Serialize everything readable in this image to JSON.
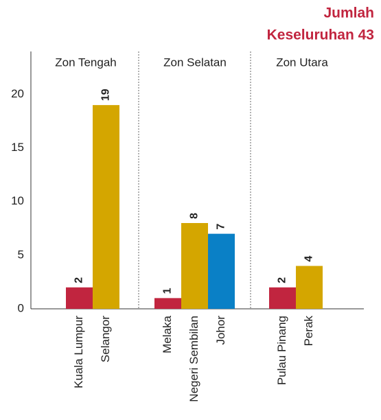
{
  "chart_data": {
    "type": "bar",
    "title_lines": [
      "Jumlah",
      "Keseluruhan 43"
    ],
    "groups": [
      {
        "name": "Zon Tengah",
        "categories": [
          "Kuala Lumpur",
          "Selangor"
        ],
        "values": [
          2,
          19
        ],
        "colors": [
          "#c1253f",
          "#d4a600"
        ]
      },
      {
        "name": "Zon Selatan",
        "categories": [
          "Melaka",
          "Negeri Sembilan",
          "Johor"
        ],
        "values": [
          1,
          8,
          7
        ],
        "colors": [
          "#c1253f",
          "#d4a600",
          "#0a80c6"
        ]
      },
      {
        "name": "Zon Utara",
        "categories": [
          "Pulau Pinang",
          "Perak"
        ],
        "values": [
          2,
          4
        ],
        "colors": [
          "#c1253f",
          "#d4a600"
        ]
      }
    ],
    "ylim": [
      0,
      24
    ],
    "yticks": [
      0,
      5,
      10,
      15,
      20
    ]
  }
}
